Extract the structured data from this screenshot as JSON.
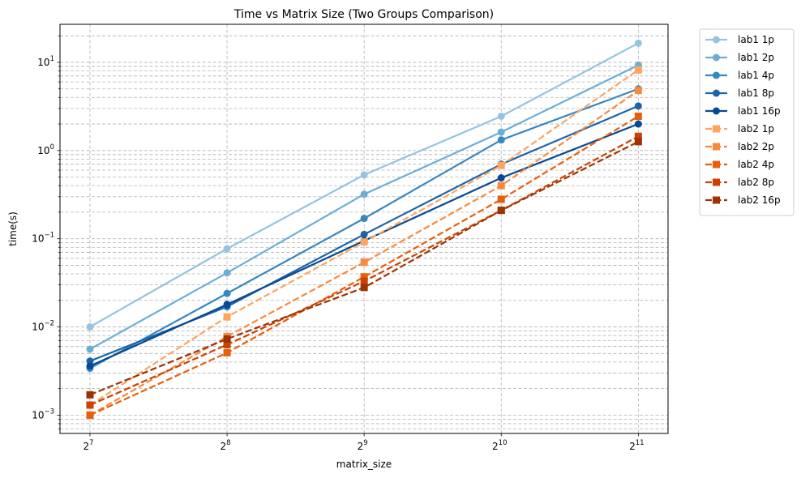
{
  "chart_data": {
    "type": "line",
    "title": "Time vs Matrix Size (Two Groups Comparison)",
    "xlabel": "matrix_size",
    "ylabel": "time(s)",
    "x_scale": "log2",
    "y_scale": "log10",
    "x": [
      128,
      256,
      512,
      1024,
      2048
    ],
    "x_tick_labels": [
      {
        "base": "2",
        "exp": "7"
      },
      {
        "base": "2",
        "exp": "8"
      },
      {
        "base": "2",
        "exp": "9"
      },
      {
        "base": "2",
        "exp": "10"
      },
      {
        "base": "2",
        "exp": "11"
      }
    ],
    "y_tick_labels": [
      {
        "value": 0.001,
        "base": "10",
        "exp": "−3"
      },
      {
        "value": 0.01,
        "base": "10",
        "exp": "−2"
      },
      {
        "value": 0.1,
        "base": "10",
        "exp": "−1"
      },
      {
        "value": 1,
        "base": "10",
        "exp": "0"
      },
      {
        "value": 10,
        "base": "10",
        "exp": "1"
      }
    ],
    "xlim": [
      110,
      2380
    ],
    "ylim": [
      0.00062,
      27
    ],
    "grid": true,
    "legend_position": "outside-right",
    "series": [
      {
        "name": "lab1 1p",
        "values": [
          0.01,
          0.077,
          0.53,
          2.45,
          16.5
        ],
        "color": "#94c4df",
        "dash": "solid",
        "marker": "circle"
      },
      {
        "name": "lab1 2p",
        "values": [
          0.0056,
          0.041,
          0.32,
          1.62,
          9.3
        ],
        "color": "#6aaed6",
        "dash": "solid",
        "marker": "circle"
      },
      {
        "name": "lab1 4p",
        "values": [
          0.0034,
          0.024,
          0.17,
          1.32,
          5.0
        ],
        "color": "#3787c0",
        "dash": "solid",
        "marker": "circle"
      },
      {
        "name": "lab1 8p",
        "values": [
          0.0041,
          0.017,
          0.112,
          0.7,
          3.2
        ],
        "color": "#1b64ab",
        "dash": "solid",
        "marker": "circle"
      },
      {
        "name": "lab1 16p",
        "values": [
          0.0036,
          0.018,
          0.095,
          0.49,
          2.0
        ],
        "color": "#084a91",
        "dash": "solid",
        "marker": "circle"
      },
      {
        "name": "lab2 1p",
        "values": [
          0.0013,
          0.013,
          0.092,
          0.68,
          8.2
        ],
        "color": "#fda45f",
        "dash": "dashed",
        "marker": "square"
      },
      {
        "name": "lab2 2p",
        "values": [
          0.001,
          0.0078,
          0.054,
          0.4,
          4.8
        ],
        "color": "#f98a3c",
        "dash": "dashed",
        "marker": "square"
      },
      {
        "name": "lab2 4p",
        "values": [
          0.001,
          0.0051,
          0.037,
          0.28,
          2.45
        ],
        "color": "#e95e0d",
        "dash": "dashed",
        "marker": "square"
      },
      {
        "name": "lab2 8p",
        "values": [
          0.0013,
          0.0063,
          0.033,
          0.21,
          1.45
        ],
        "color": "#ca4201",
        "dash": "dashed",
        "marker": "square"
      },
      {
        "name": "lab2 16p",
        "values": [
          0.0017,
          0.0073,
          0.028,
          0.21,
          1.26
        ],
        "color": "#9d3203",
        "dash": "dashed",
        "marker": "square"
      }
    ]
  }
}
